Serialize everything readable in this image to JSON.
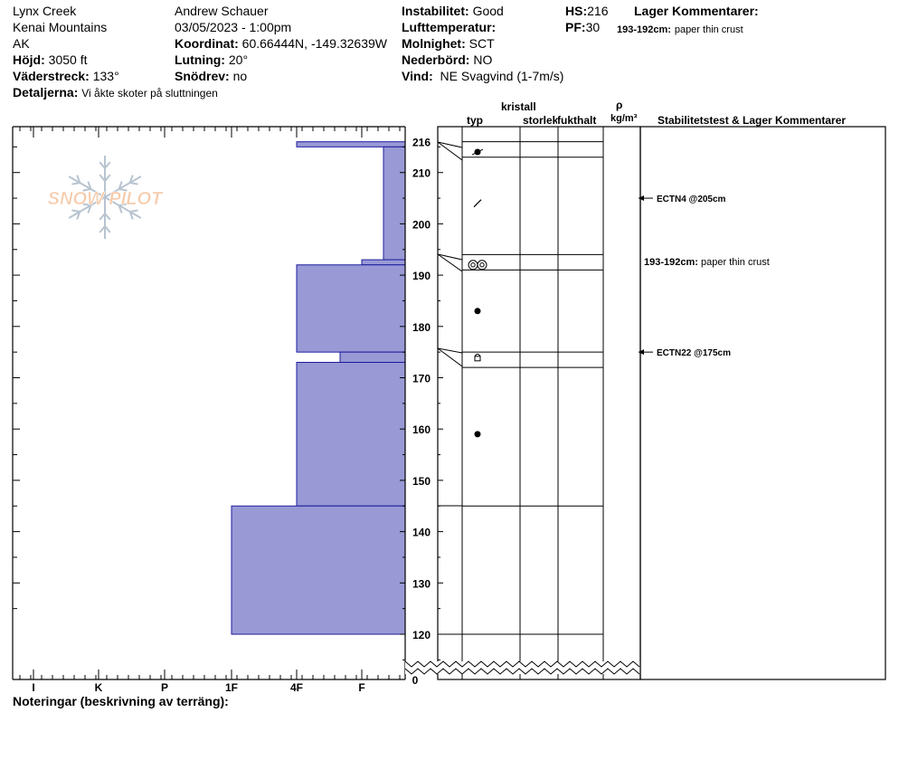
{
  "header": {
    "location": "Lynx Creek",
    "range": "Kenai Mountains",
    "state": "AK",
    "elevation_label": "Höjd:",
    "elevation_value": "3050 ft",
    "aspect_label": "Väderstreck:",
    "aspect_value": "133°",
    "details_label": "Detaljerna:",
    "details_value": "Vi åkte skoter på sluttningen",
    "observer": "Andrew Schauer",
    "datetime": "03/05/2023 - 1:00pm",
    "coord_label": "Koordinat:",
    "coord_value": "60.66444N, -149.32639W",
    "slope_label": "Lutning:",
    "slope_value": "20°",
    "drift_label": "Snödrev:",
    "drift_value": "no",
    "stability_label": "Instabilitet:",
    "stability_value": "Good",
    "airtemp_label": "Lufttemperatur:",
    "airtemp_value": "",
    "sky_label": "Molnighet:",
    "sky_value": "SCT",
    "precip_label": "Nederbörd:",
    "precip_value": "NO",
    "wind_label": "Vind:",
    "wind_value": "NE Svagvind (1-7m/s)",
    "hs_label": "HS:",
    "hs_value": "216",
    "pf_label": "PF:",
    "pf_value": "30",
    "layer_comments_label": "Lager Kommentarer:",
    "layer_comment_range": "193-192cm:",
    "layer_comment_text": "paper thin crust"
  },
  "logo": {
    "text": "SNOW PILOT"
  },
  "columns": {
    "crystal": "kristall",
    "type": "typ",
    "size": "storlek",
    "moisture": "fukthalt",
    "rho": "ρ",
    "density_unit": "kg/m³",
    "stability": "Stabilitetstest & Lager Kommentarer"
  },
  "hardness_labels": [
    "I",
    "K",
    "P",
    "1F",
    "4F",
    "F"
  ],
  "notes_label": "Noteringar (beskrivning av terräng):",
  "chart_data": {
    "type": "snow-profile",
    "y_axis": {
      "range_cm": [
        115,
        217
      ],
      "ticks": [
        120,
        130,
        140,
        150,
        160,
        170,
        180,
        190,
        200,
        210,
        216
      ],
      "zero_label": "0"
    },
    "hardness_bars": [
      {
        "top": 216,
        "bottom": 215,
        "hardness": "F+"
      },
      {
        "top": 215,
        "bottom": 193,
        "hardness": "F-"
      },
      {
        "top": 193,
        "bottom": 192,
        "hardness": "F"
      },
      {
        "top": 192,
        "bottom": 175,
        "hardness": "4F"
      },
      {
        "top": 175,
        "bottom": 173,
        "hardness": "4F+"
      },
      {
        "top": 173,
        "bottom": 145,
        "hardness": "4F"
      },
      {
        "top": 145,
        "bottom": 120,
        "hardness": "1F"
      }
    ],
    "layer_boundaries": [
      216,
      213,
      194,
      191,
      175,
      172,
      145,
      120
    ],
    "crystal_types": [
      {
        "depth": 214,
        "symbol": "precipitation-particles-icon"
      },
      {
        "depth": 204,
        "symbol": "decomposing-fragments-icon"
      },
      {
        "depth": 192,
        "symbol": "melt-forms-icon"
      },
      {
        "depth": 183,
        "symbol": "rounded-grains-icon"
      },
      {
        "depth": 174,
        "symbol": "faceted-crystals-icon"
      },
      {
        "depth": 159,
        "symbol": "rounded-grains-icon"
      }
    ],
    "tests": [
      {
        "depth": 205,
        "label": "ECTN4 @205cm"
      },
      {
        "depth": 175,
        "label": "ECTN22 @175cm"
      }
    ],
    "comments": [
      {
        "depth": 193,
        "range": "193-192cm:",
        "text": "paper thin crust"
      }
    ]
  },
  "colors": {
    "hardness_fill": "#9999d6",
    "hardness_stroke": "#1c1c9c",
    "logo": "#f6c9a8"
  }
}
